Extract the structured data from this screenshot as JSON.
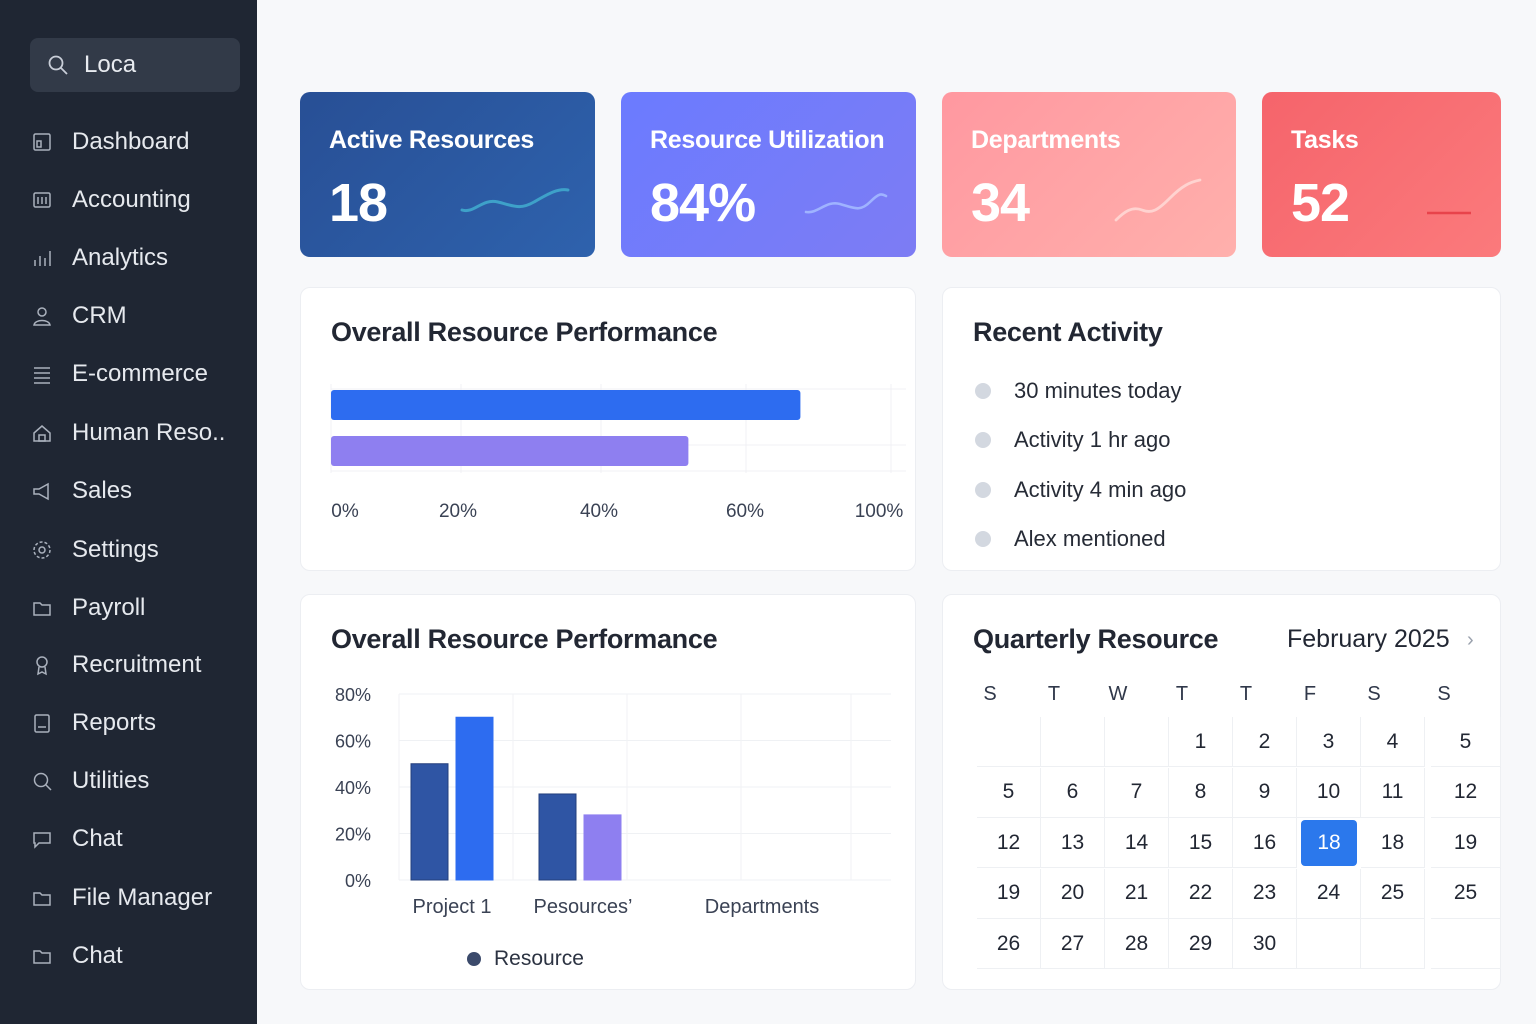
{
  "sidebar": {
    "search_value": "Loca",
    "items": [
      {
        "label": "Dashboard",
        "icon": "dashboard-icon"
      },
      {
        "label": "Accounting",
        "icon": "accounting-icon"
      },
      {
        "label": "Analytics",
        "icon": "analytics-icon"
      },
      {
        "label": "CRM",
        "icon": "user-icon"
      },
      {
        "label": "E-commerce",
        "icon": "list-icon"
      },
      {
        "label": "Human Reso..",
        "icon": "home-icon"
      },
      {
        "label": "Sales",
        "icon": "megaphone-icon"
      },
      {
        "label": "Settings",
        "icon": "gear-icon"
      },
      {
        "label": "Payroll",
        "icon": "folder-icon"
      },
      {
        "label": "Recruitment",
        "icon": "badge-icon"
      },
      {
        "label": "Reports",
        "icon": "report-icon"
      },
      {
        "label": "Utilities",
        "icon": "search-icon"
      },
      {
        "label": "Chat",
        "icon": "chat-icon"
      },
      {
        "label": "File Manager",
        "icon": "folder-icon"
      },
      {
        "label": "Chat",
        "icon": "folder-icon"
      }
    ]
  },
  "stats": [
    {
      "label": "Active Resources",
      "value": "18"
    },
    {
      "label": "Resource Utilization",
      "value": "84%"
    },
    {
      "label": "Departments",
      "value": "34"
    },
    {
      "label": "Tasks",
      "value": "52"
    }
  ],
  "performance": {
    "title": "Overall Resource Performance"
  },
  "activity": {
    "title": "Recent Activity",
    "items": [
      "30 minutes today",
      "Activity 1 hr ago",
      "Activity 4 min ago",
      "Alex mentioned"
    ]
  },
  "performance2": {
    "title": "Overall Resource Performance",
    "legend": "Resource"
  },
  "calendar": {
    "title": "Quarterly Resource",
    "month": "February 2025",
    "next": "›",
    "weekdays": [
      "S",
      "T",
      "W",
      "T",
      "T",
      "F",
      "S",
      "S"
    ],
    "weeks": [
      [
        "",
        "",
        "",
        "1",
        "2",
        "3",
        "4",
        "5"
      ],
      [
        "5",
        "6",
        "7",
        "8",
        "9",
        "10",
        "11",
        "12"
      ],
      [
        "12",
        "13",
        "14",
        "15",
        "16",
        "18",
        "18",
        "19"
      ],
      [
        "19",
        "20",
        "21",
        "22",
        "23",
        "24",
        "25",
        "25"
      ],
      [
        "26",
        "27",
        "28",
        "29",
        "30",
        "",
        "",
        ""
      ]
    ],
    "selected": {
      "week": 2,
      "day": 5
    }
  },
  "colors": {
    "blue": "#2d6cf0",
    "purple": "#8e7ff0",
    "navy": "#2f55a4",
    "selected": "#2b78ec"
  },
  "chart_data": [
    {
      "type": "bar",
      "orientation": "horizontal",
      "title": "Overall Resource Performance",
      "x_tick_labels": [
        "0%",
        "20%",
        "40%",
        "60%",
        "100%"
      ],
      "series": [
        {
          "values": [
            84
          ]
        },
        {
          "values": [
            64
          ]
        }
      ]
    },
    {
      "type": "bar",
      "title": "Overall Resource Performance",
      "categories": [
        "Project 1",
        "Pesources’",
        "Departments"
      ],
      "y_tick_labels": [
        "80%",
        "60%",
        "40%",
        "20%",
        "0%"
      ],
      "ylim": [
        0,
        80
      ],
      "series": [
        {
          "name": "Resource",
          "values": [
            50,
            37,
            null
          ]
        },
        {
          "values": [
            70,
            28,
            null
          ]
        }
      ],
      "legend": "bottom"
    }
  ]
}
